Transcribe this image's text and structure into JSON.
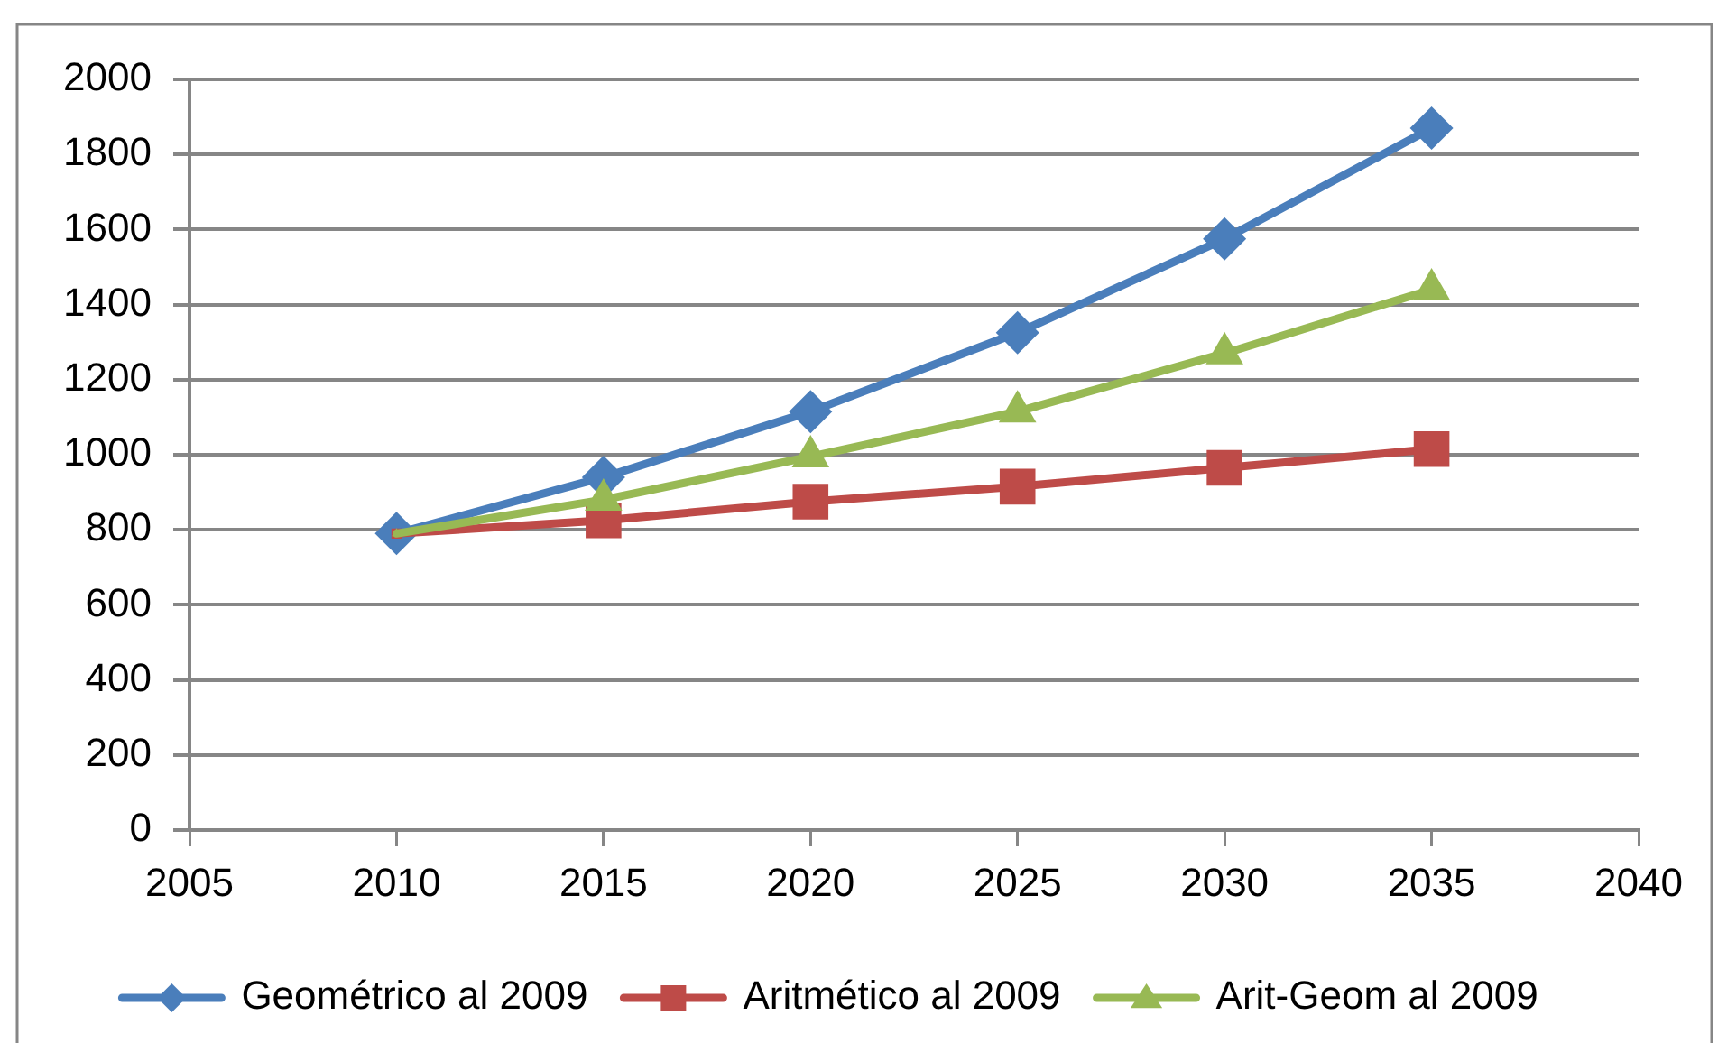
{
  "chart_data": {
    "type": "line",
    "x": [
      2010,
      2015,
      2020,
      2025,
      2030,
      2035
    ],
    "series": [
      {
        "name": "Geométrico al 2009",
        "color": "#4a7ebb",
        "marker": "diamond",
        "values": [
          790,
          940,
          1115,
          1325,
          1575,
          1870
        ]
      },
      {
        "name": "Aritmético al 2009",
        "color": "#be4b48",
        "marker": "square",
        "values": [
          790,
          825,
          875,
          915,
          965,
          1015
        ]
      },
      {
        "name": "Arit-Geom al 2009",
        "color": "#98b954",
        "marker": "triangle",
        "values": [
          790,
          880,
          995,
          1115,
          1270,
          1440
        ]
      }
    ],
    "xlim": [
      2005,
      2040
    ],
    "xticks": [
      2005,
      2010,
      2015,
      2020,
      2025,
      2030,
      2035,
      2040
    ],
    "ylim": [
      0,
      2000
    ],
    "yticks": [
      0,
      200,
      400,
      600,
      800,
      1000,
      1200,
      1400,
      1600,
      1800,
      2000
    ],
    "grid": "y",
    "legend": "bottom",
    "line_style": "solid"
  }
}
